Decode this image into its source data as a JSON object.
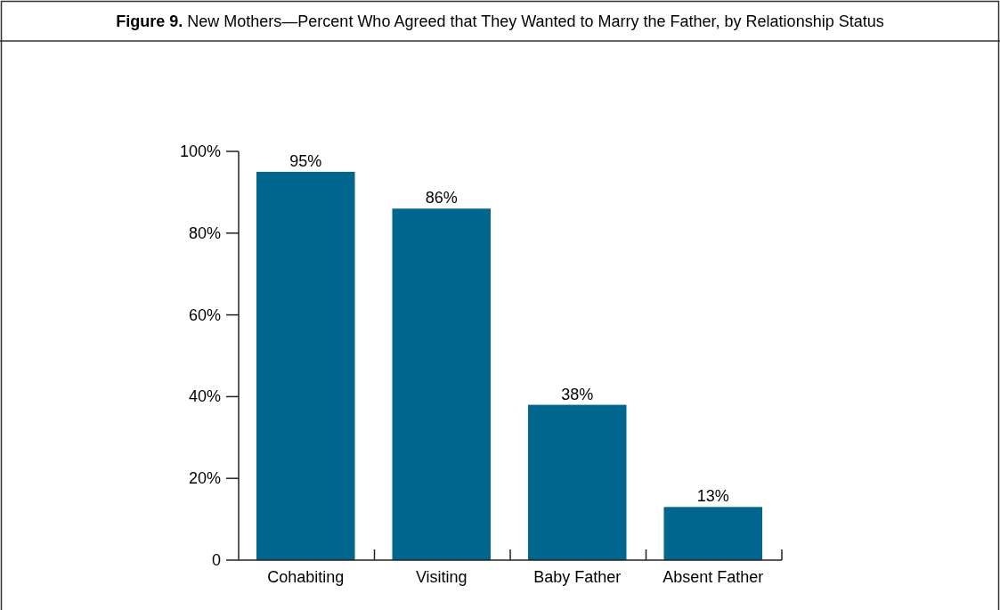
{
  "chart_data": {
    "type": "bar",
    "title": "Figure 9. New Mothers—Percent Who Agreed that They Wanted to Marry the Father, by Relationship Status",
    "categories": [
      "Cohabiting",
      "Visiting",
      "Baby Father",
      "Absent Father"
    ],
    "values": [
      95,
      86,
      38,
      13
    ],
    "color": "#00668e",
    "value_labels": [
      "95%",
      "86%",
      "38%",
      "13%"
    ],
    "ylim": [
      0,
      100
    ],
    "yticks": [
      0,
      {
        "value": 20,
        "label": "20%"
      },
      {
        "value": 40,
        "label": "40%"
      },
      {
        "value": 60,
        "label": "60%"
      },
      {
        "value": 80,
        "label": "80%"
      },
      {
        "value": 100,
        "label": "100%"
      }
    ],
    "grid": false
  }
}
